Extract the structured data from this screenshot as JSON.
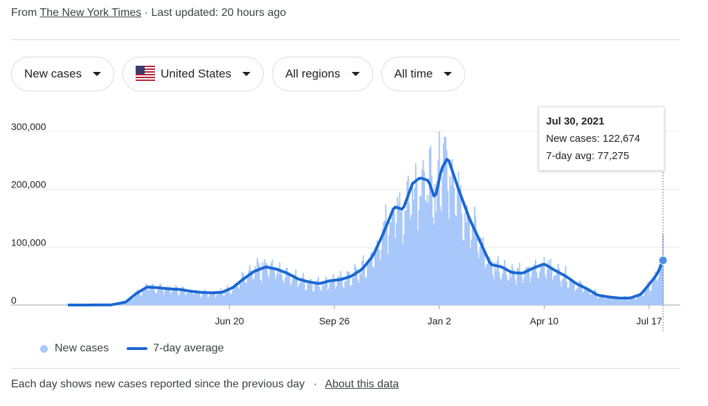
{
  "source": {
    "prefix": "From",
    "link": "The New York Times",
    "separator": "·",
    "updated": "Last updated: 20 hours ago"
  },
  "filters": [
    {
      "label": "New cases"
    },
    {
      "label": "United States"
    },
    {
      "label": "All regions"
    },
    {
      "label": "All time"
    }
  ],
  "tooltip": {
    "date": "Jul 30, 2021",
    "new_cases": "New cases: 122,674",
    "avg": "7-day avg: 77,275"
  },
  "legend": {
    "new_cases": "New cases",
    "avg": "7-day average"
  },
  "footer": {
    "text": "Each day shows new cases reported since the previous day",
    "separator": "·",
    "link": "About this data"
  },
  "colors": {
    "bars": "#a8c7fa",
    "line": "#1967d2"
  },
  "chart_data": {
    "type": "bar",
    "y_ticks": [
      "300,000",
      "200,000",
      "100,000",
      "0"
    ],
    "y_tick_values": [
      300000,
      200000,
      100000,
      0
    ],
    "x_ticks": [
      "Jun 20",
      "Sep 26",
      "Jan 2",
      "Apr 10",
      "Jul 17"
    ],
    "ylim": [
      0,
      300000
    ],
    "series": [
      {
        "name": "7-day average",
        "type": "line",
        "points": [
          [
            "2020-01-21",
            0
          ],
          [
            "2020-03-01",
            100
          ],
          [
            "2020-03-15",
            5000
          ],
          [
            "2020-03-25",
            20000
          ],
          [
            "2020-04-04",
            31000
          ],
          [
            "2020-04-14",
            30000
          ],
          [
            "2020-04-24",
            28000
          ],
          [
            "2020-05-04",
            27000
          ],
          [
            "2020-05-14",
            24000
          ],
          [
            "2020-05-24",
            22000
          ],
          [
            "2020-06-03",
            21000
          ],
          [
            "2020-06-13",
            22000
          ],
          [
            "2020-06-23",
            30000
          ],
          [
            "2020-07-03",
            45000
          ],
          [
            "2020-07-13",
            58000
          ],
          [
            "2020-07-24",
            66000
          ],
          [
            "2020-08-03",
            62000
          ],
          [
            "2020-08-13",
            55000
          ],
          [
            "2020-08-23",
            45000
          ],
          [
            "2020-09-02",
            40000
          ],
          [
            "2020-09-12",
            37000
          ],
          [
            "2020-09-22",
            42000
          ],
          [
            "2020-10-02",
            44000
          ],
          [
            "2020-10-12",
            50000
          ],
          [
            "2020-10-22",
            62000
          ],
          [
            "2020-11-01",
            85000
          ],
          [
            "2020-11-11",
            125000
          ],
          [
            "2020-11-21",
            170000
          ],
          [
            "2020-11-29",
            165000
          ],
          [
            "2020-12-08",
            210000
          ],
          [
            "2020-12-15",
            220000
          ],
          [
            "2020-12-23",
            215000
          ],
          [
            "2020-12-29",
            183000
          ],
          [
            "2021-01-04",
            235000
          ],
          [
            "2021-01-10",
            255000
          ],
          [
            "2021-01-20",
            200000
          ],
          [
            "2021-01-30",
            150000
          ],
          [
            "2021-02-09",
            110000
          ],
          [
            "2021-02-19",
            70000
          ],
          [
            "2021-03-01",
            66000
          ],
          [
            "2021-03-11",
            56000
          ],
          [
            "2021-03-21",
            55000
          ],
          [
            "2021-03-31",
            64000
          ],
          [
            "2021-04-10",
            71000
          ],
          [
            "2021-04-20",
            60000
          ],
          [
            "2021-04-30",
            50000
          ],
          [
            "2021-05-10",
            37000
          ],
          [
            "2021-05-20",
            28000
          ],
          [
            "2021-05-30",
            17000
          ],
          [
            "2021-06-09",
            14000
          ],
          [
            "2021-06-19",
            12000
          ],
          [
            "2021-06-29",
            12000
          ],
          [
            "2021-07-09",
            18000
          ],
          [
            "2021-07-19",
            40000
          ],
          [
            "2021-07-25",
            55000
          ],
          [
            "2021-07-30",
            77275
          ]
        ]
      },
      {
        "name": "New cases",
        "type": "bar",
        "peaks": [
          [
            "2021-01-02",
            300000
          ],
          [
            "2020-12-18",
            250000
          ],
          [
            "2021-01-08",
            290000
          ],
          [
            "2021-07-30",
            122674
          ]
        ]
      }
    ]
  }
}
